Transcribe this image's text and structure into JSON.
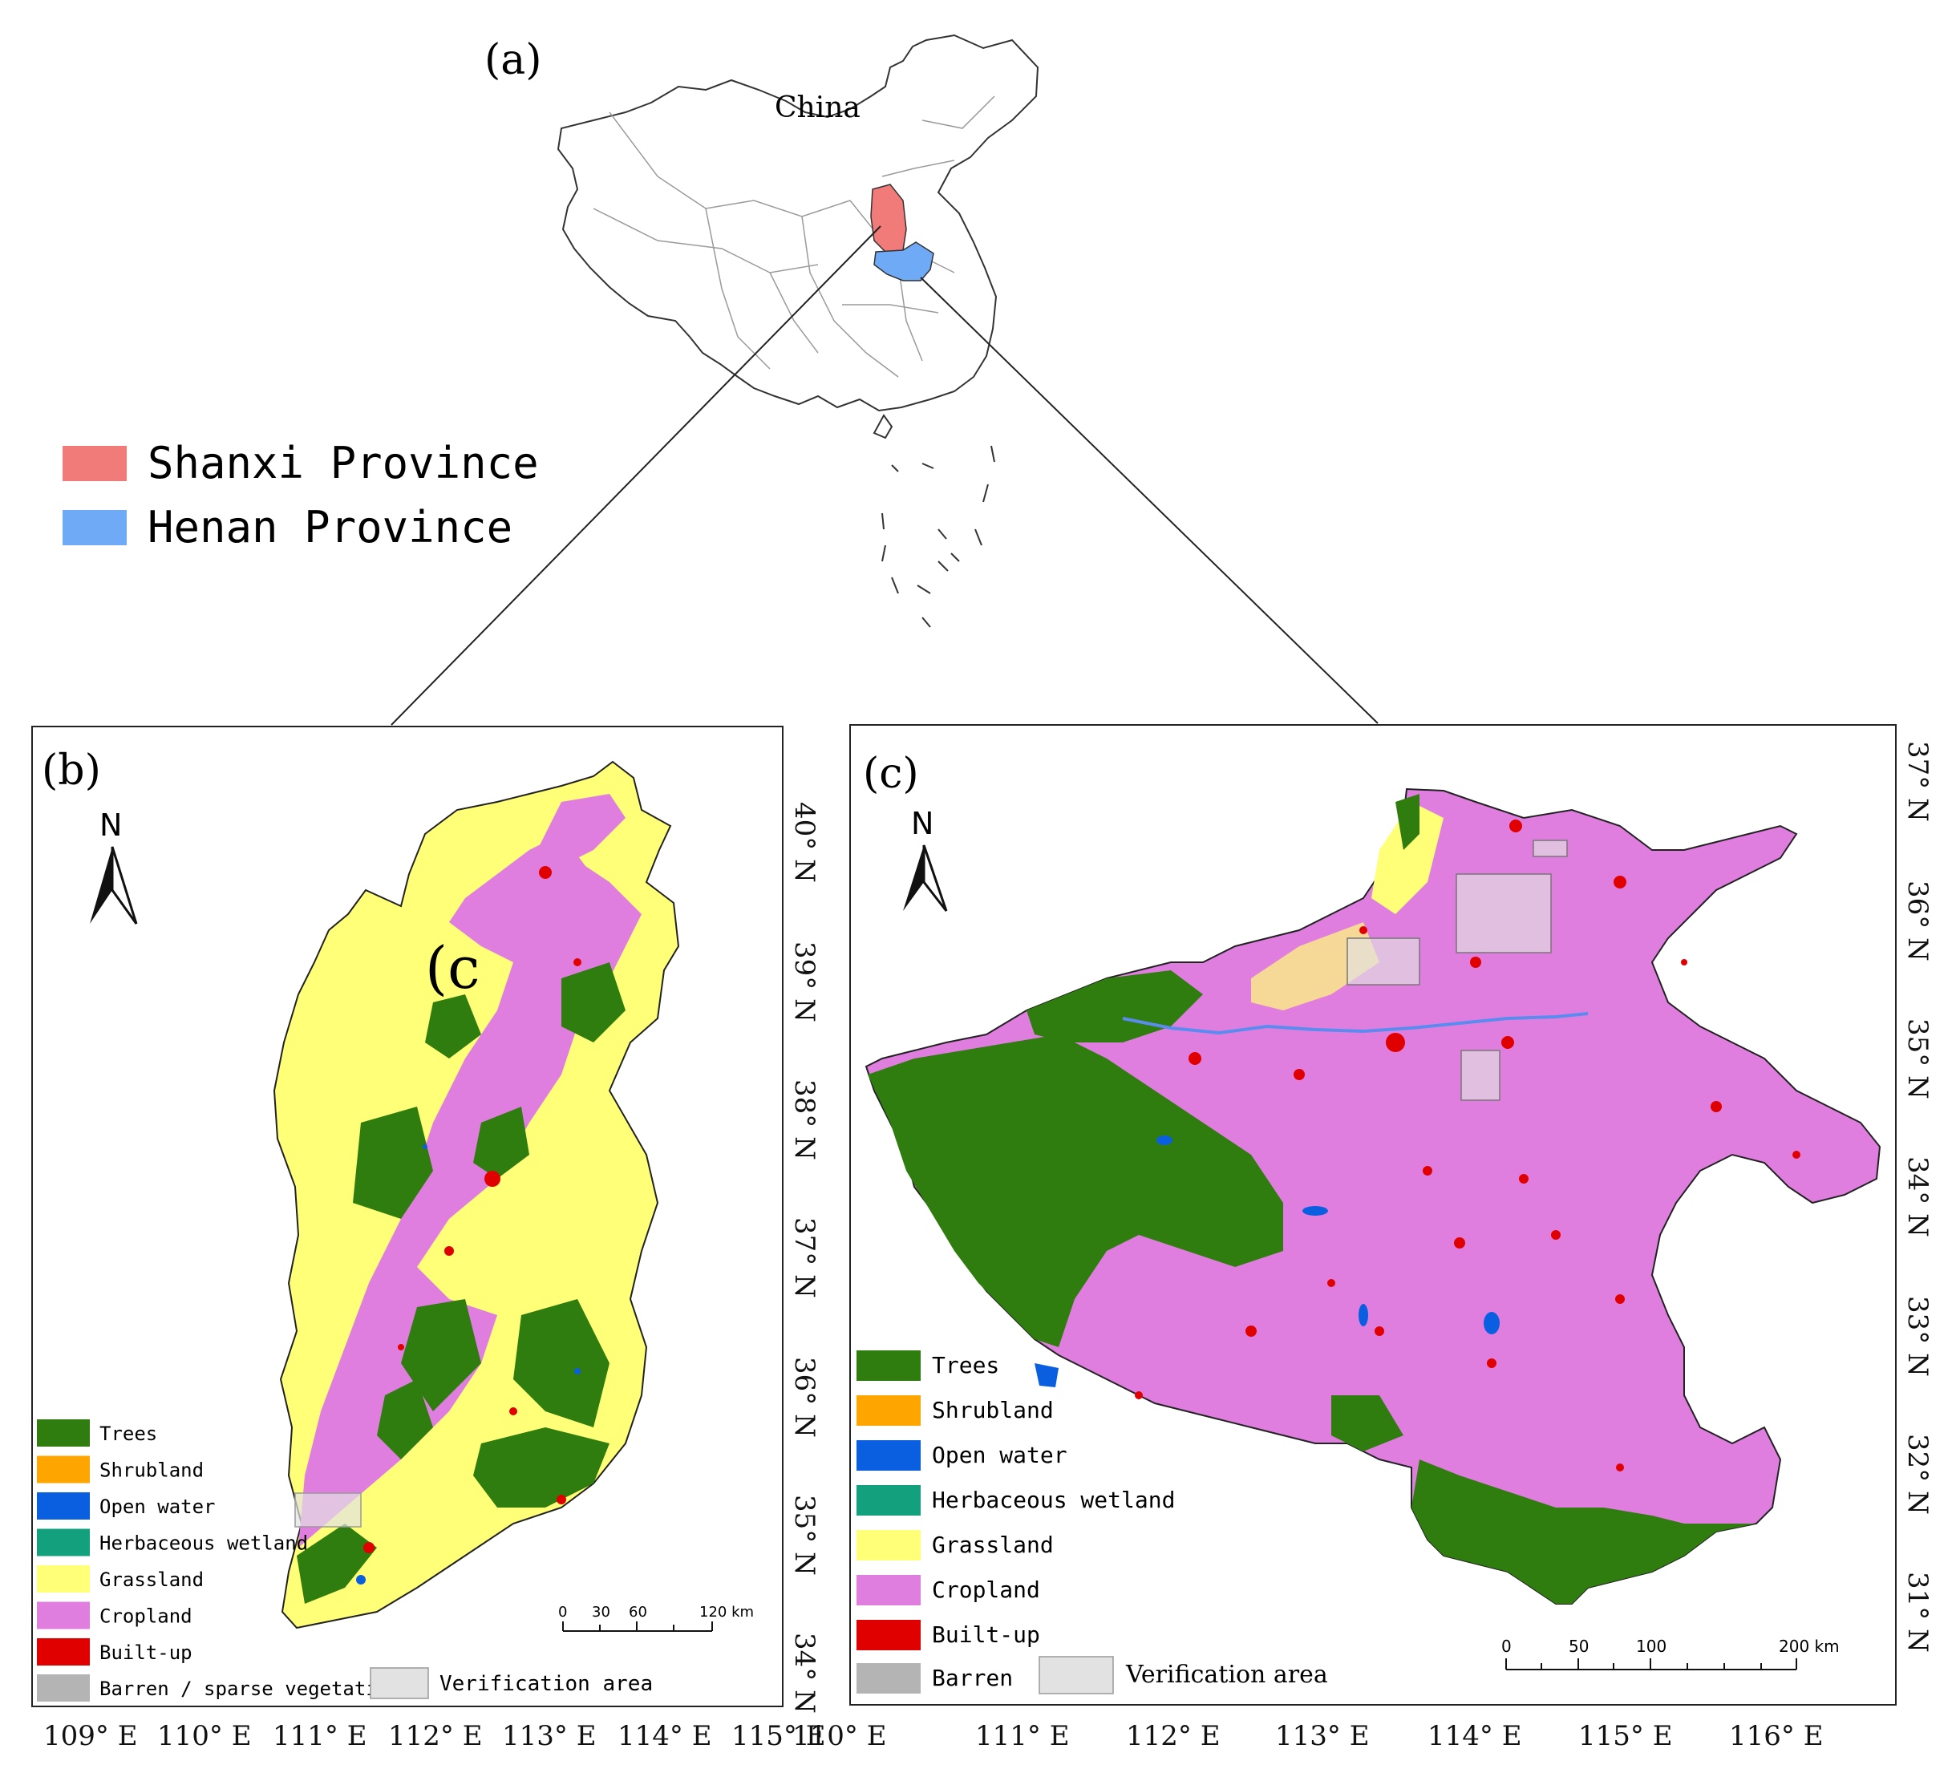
{
  "panel_a": {
    "label": "(a)",
    "country_label": "China",
    "legend": [
      {
        "label": "Shanxi Province",
        "color": "#f07b78"
      },
      {
        "label": "Henan Province",
        "color": "#6eaaf5"
      }
    ]
  },
  "panel_b": {
    "label": "(b)",
    "north": "N",
    "inset_mark": "(c",
    "lon_ticks": [
      "109° E",
      "110° E",
      "111° E",
      "112° E",
      "113° E",
      "114° E",
      "115° E"
    ],
    "lat_ticks": [
      "40° N",
      "39° N",
      "38° N",
      "37° N",
      "36° N",
      "35° N",
      "34° N"
    ],
    "scale": {
      "labels": [
        "0",
        "30",
        "60",
        "120 km"
      ]
    },
    "verification_label": "Verification area"
  },
  "panel_c": {
    "label": "(c)",
    "north": "N",
    "lon_ticks": [
      "110° E",
      "111° E",
      "112° E",
      "113° E",
      "114° E",
      "115° E",
      "116° E"
    ],
    "lat_ticks": [
      "37° N",
      "36° N",
      "35° N",
      "34° N",
      "33° N",
      "32° N",
      "31° N"
    ],
    "scale": {
      "labels": [
        "0",
        "50",
        "100",
        "200 km"
      ]
    },
    "verification_label": "Verification area"
  },
  "landcover_legend": [
    {
      "key": "trees",
      "label": "Trees",
      "color": "#2e7d0e"
    },
    {
      "key": "shrubland",
      "label": "Shrubland",
      "color": "#ffa500"
    },
    {
      "key": "water",
      "label": "Open water",
      "color": "#0a5fe0"
    },
    {
      "key": "wetland",
      "label": "Herbaceous wetland",
      "color": "#12a07d"
    },
    {
      "key": "grassland",
      "label": "Grassland",
      "color": "#ffff78"
    },
    {
      "key": "cropland",
      "label": "Cropland",
      "color": "#e07ee0"
    },
    {
      "key": "builtup",
      "label": "Built-up",
      "color": "#e00000"
    }
  ],
  "barren_b": {
    "label": "Barren / sparse vegetation",
    "color": "#b4b4b4"
  },
  "barren_c": {
    "label": "Barren",
    "color": "#b4b4b4"
  },
  "verification_color": "#e2e2e2"
}
